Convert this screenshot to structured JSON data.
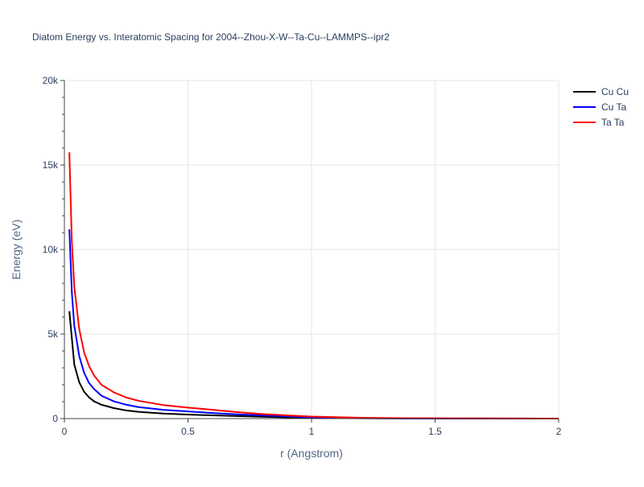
{
  "chart_data": {
    "type": "line",
    "title": "Diatom Energy vs. Interatomic Spacing for 2004--Zhou-X-W--Ta-Cu--LAMMPS--ipr2",
    "xlabel": "r (Angstrom)",
    "ylabel": "Energy (eV)",
    "xlim": [
      0,
      2
    ],
    "ylim": [
      0,
      20000
    ],
    "x_ticks": [
      {
        "value": 0,
        "label": "0"
      },
      {
        "value": 0.5,
        "label": "0.5"
      },
      {
        "value": 1,
        "label": "1"
      },
      {
        "value": 1.5,
        "label": "1.5"
      },
      {
        "value": 2,
        "label": "2"
      }
    ],
    "y_ticks": [
      {
        "value": 0,
        "label": "0"
      },
      {
        "value": 5000,
        "label": "5k"
      },
      {
        "value": 10000,
        "label": "10k"
      },
      {
        "value": 15000,
        "label": "15k"
      },
      {
        "value": 20000,
        "label": "20k"
      }
    ],
    "grid": true,
    "legend_position": "top-right",
    "series": [
      {
        "name": "Cu Cu",
        "color": "#000000",
        "x": [
          0.02,
          0.04,
          0.06,
          0.08,
          0.1,
          0.12,
          0.15,
          0.2,
          0.25,
          0.3,
          0.4,
          0.5,
          0.6,
          0.7,
          0.8,
          0.9,
          1.0,
          1.2,
          1.5,
          2.0
        ],
        "y": [
          6350,
          3200,
          2150,
          1580,
          1250,
          1020,
          820,
          620,
          480,
          400,
          300,
          240,
          190,
          150,
          110,
          70,
          40,
          15,
          5,
          0
        ]
      },
      {
        "name": "Cu Ta",
        "color": "#0000ff",
        "x": [
          0.02,
          0.03,
          0.04,
          0.06,
          0.08,
          0.1,
          0.12,
          0.15,
          0.2,
          0.25,
          0.3,
          0.4,
          0.5,
          0.6,
          0.7,
          0.8,
          0.9,
          1.0,
          1.2,
          1.5,
          2.0
        ],
        "y": [
          11200,
          7500,
          5500,
          3700,
          2700,
          2100,
          1750,
          1350,
          1020,
          820,
          680,
          520,
          420,
          330,
          250,
          190,
          130,
          75,
          25,
          8,
          0
        ]
      },
      {
        "name": "Ta Ta",
        "color": "#ff0000",
        "x": [
          0.02,
          0.03,
          0.04,
          0.06,
          0.08,
          0.1,
          0.12,
          0.15,
          0.2,
          0.25,
          0.3,
          0.4,
          0.5,
          0.6,
          0.7,
          0.8,
          0.9,
          1.0,
          1.2,
          1.5,
          2.0
        ],
        "y": [
          15750,
          10500,
          7800,
          5300,
          3900,
          3100,
          2550,
          2000,
          1550,
          1250,
          1050,
          800,
          650,
          520,
          380,
          270,
          190,
          120,
          45,
          15,
          0
        ]
      }
    ]
  }
}
